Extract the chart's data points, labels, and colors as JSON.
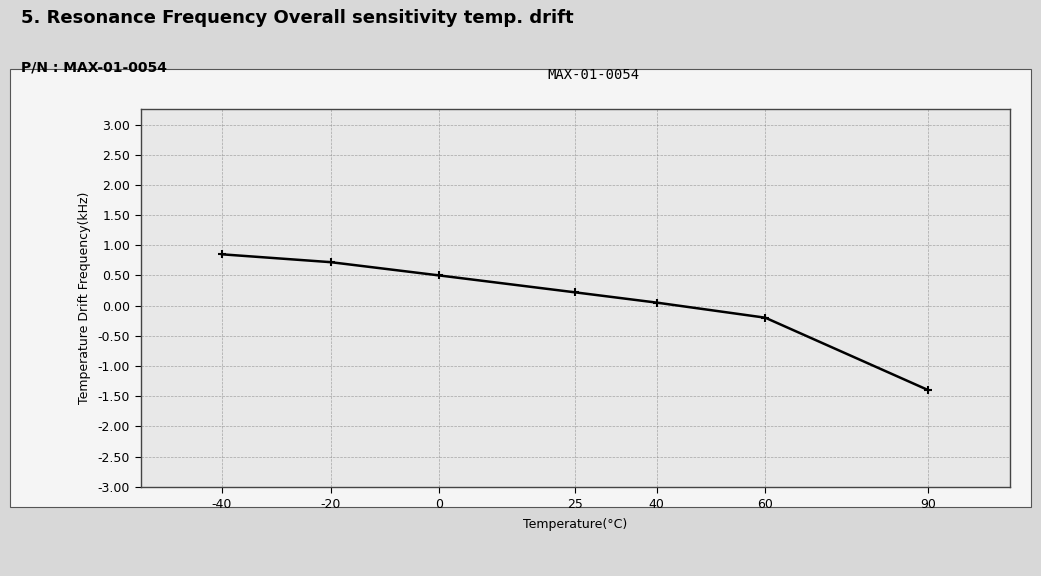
{
  "title": "5. Resonance Frequency Overall sensitivity temp. drift",
  "pn_label": "P/N : MAX-01-0054",
  "chart_label": "MAX-01-0054",
  "xlabel": "Temperature(°C)",
  "ylabel": "Temperature Drift Frequency(kHz)",
  "x": [
    -40,
    -20,
    0,
    25,
    40,
    60,
    90
  ],
  "y": [
    0.85,
    0.72,
    0.5,
    0.22,
    0.05,
    -0.2,
    -1.4
  ],
  "xlim": [
    -55,
    105
  ],
  "ylim": [
    -3.0,
    3.25
  ],
  "yticks": [
    -3.0,
    -2.5,
    -2.0,
    -1.5,
    -1.0,
    -0.5,
    0.0,
    0.5,
    1.0,
    1.5,
    2.0,
    2.5,
    3.0
  ],
  "xticks": [
    -40,
    -20,
    0,
    25,
    40,
    60,
    90
  ],
  "bg_color": "#e8e8e8",
  "paper_color": "#d8d8d8",
  "inner_paper_color": "#f5f5f5",
  "line_color": "#000000",
  "grid_color": "#888888",
  "title_fontsize": 13,
  "label_fontsize": 9,
  "tick_fontsize": 9,
  "chart_label_fontsize": 10,
  "pn_fontsize": 10
}
